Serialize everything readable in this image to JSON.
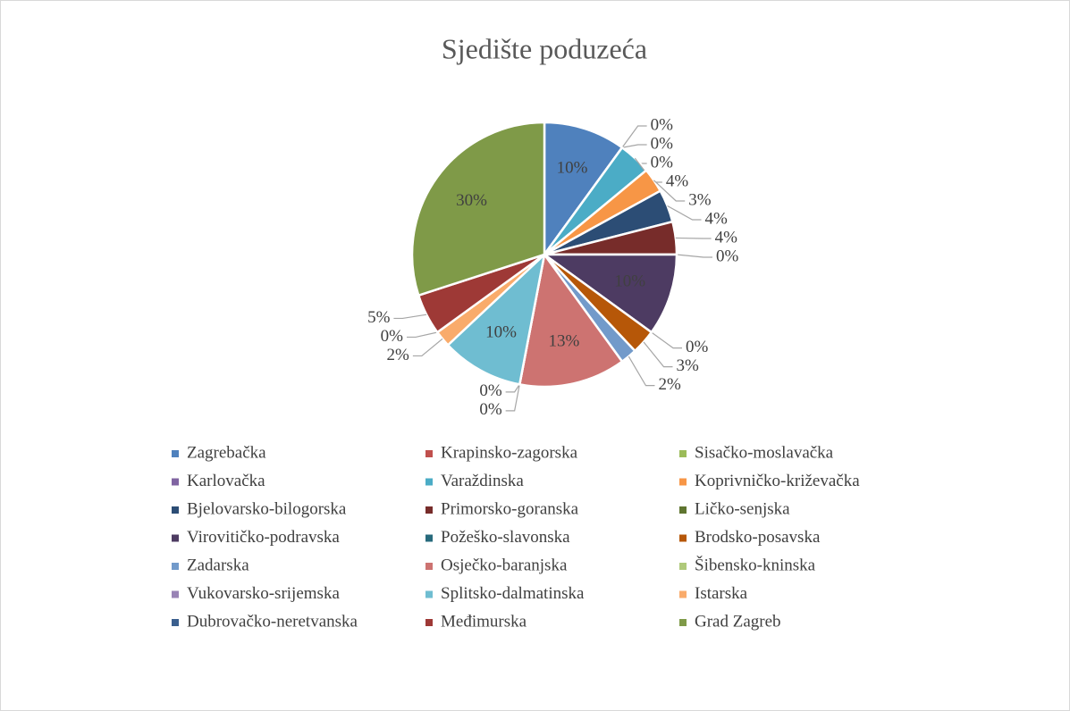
{
  "chart_data": {
    "type": "pie",
    "title": "Sjedište poduzeća",
    "categories": [
      "Zagrebačka",
      "Krapinsko-zagorska",
      "Sisačko-moslavačka",
      "Karlovačka",
      "Varaždinska",
      "Koprivničko-križevačka",
      "Bjelovarsko-bilogorska",
      "Primorsko-goranska",
      "Ličko-senjska",
      "Virovitičko-podravska",
      "Požeško-slavonska",
      "Brodsko-posavska",
      "Zadarska",
      "Osječko-baranjska",
      "Šibensko-kninska",
      "Vukovarsko-srijemska",
      "Splitsko-dalmatinska",
      "Istarska",
      "Dubrovačko-neretvanska",
      "Međimurska",
      "Grad Zagreb"
    ],
    "values": [
      10,
      0,
      0,
      0,
      4,
      3,
      4,
      4,
      0,
      10,
      0,
      3,
      2,
      13,
      0,
      0,
      10,
      2,
      0,
      5,
      30
    ],
    "value_labels": [
      "10%",
      "0%",
      "0%",
      "0%",
      "4%",
      "3%",
      "4%",
      "4%",
      "0%",
      "10%",
      "0%",
      "3%",
      "2%",
      "13%",
      "0%",
      "0%",
      "10%",
      "2%",
      "0%",
      "5%",
      "30%"
    ],
    "colors": [
      "#4f81bd",
      "#c0504d",
      "#9bbb59",
      "#8064a2",
      "#4bacc6",
      "#f79646",
      "#2c4d75",
      "#772c2a",
      "#5f7530",
      "#4d3b62",
      "#276a7c",
      "#b65708",
      "#729aca",
      "#cd7371",
      "#afc97a",
      "#9983b5",
      "#6fbdd1",
      "#f9ab6b",
      "#3a5f8e",
      "#9e3936",
      "#7f9a48"
    ],
    "legend": "bottom"
  }
}
